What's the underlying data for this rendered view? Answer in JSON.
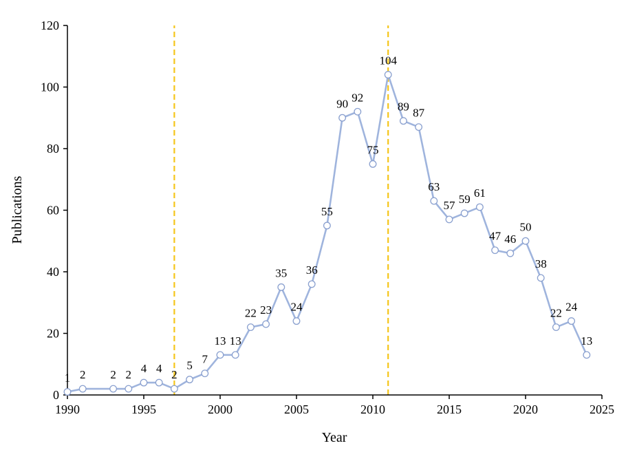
{
  "chart_data": {
    "type": "line",
    "title": "",
    "xlabel": "Year",
    "ylabel": "Publications",
    "xlim": [
      1990,
      2025
    ],
    "ylim": [
      0,
      120
    ],
    "x_ticks": [
      "1990",
      "1995",
      "2000",
      "2005",
      "2010",
      "2015",
      "2020",
      "2025"
    ],
    "y_ticks": [
      "0",
      "20",
      "40",
      "60",
      "80",
      "100",
      "120"
    ],
    "grid": false,
    "legend": "none",
    "series": [
      {
        "x": [
          1990,
          1991,
          1993,
          1994,
          1995,
          1996,
          1997,
          1998,
          1999,
          2000,
          2001,
          2002,
          2003,
          2004,
          2005,
          2006,
          2007,
          2008,
          2009,
          2010,
          2011,
          2012,
          2013,
          2014,
          2015,
          2016,
          2017,
          2018,
          2019,
          2020,
          2021,
          2022,
          2023,
          2024
        ],
        "values": [
          1,
          2,
          2,
          2,
          4,
          4,
          2,
          5,
          7,
          13,
          13,
          22,
          23,
          35,
          24,
          36,
          55,
          90,
          92,
          75,
          104,
          89,
          87,
          63,
          57,
          59,
          61,
          47,
          46,
          50,
          38,
          22,
          24,
          13
        ],
        "labels": [
          "1",
          "2",
          "2",
          "2",
          "4",
          "4",
          "2",
          "5",
          "7",
          "13",
          "13",
          "22",
          "23",
          "35",
          "24",
          "36",
          "55",
          "90",
          "92",
          "75",
          "104",
          "89",
          "87",
          "63",
          "57",
          "59",
          "61",
          "47",
          "46",
          "50",
          "38",
          "22",
          "24",
          "13"
        ],
        "color": "#9fb4dd"
      }
    ],
    "reference_lines": [
      {
        "x": 1997,
        "color": "#f5c518",
        "style": "dashed"
      },
      {
        "x": 2011,
        "color": "#f5c518",
        "style": "dashed"
      }
    ]
  }
}
